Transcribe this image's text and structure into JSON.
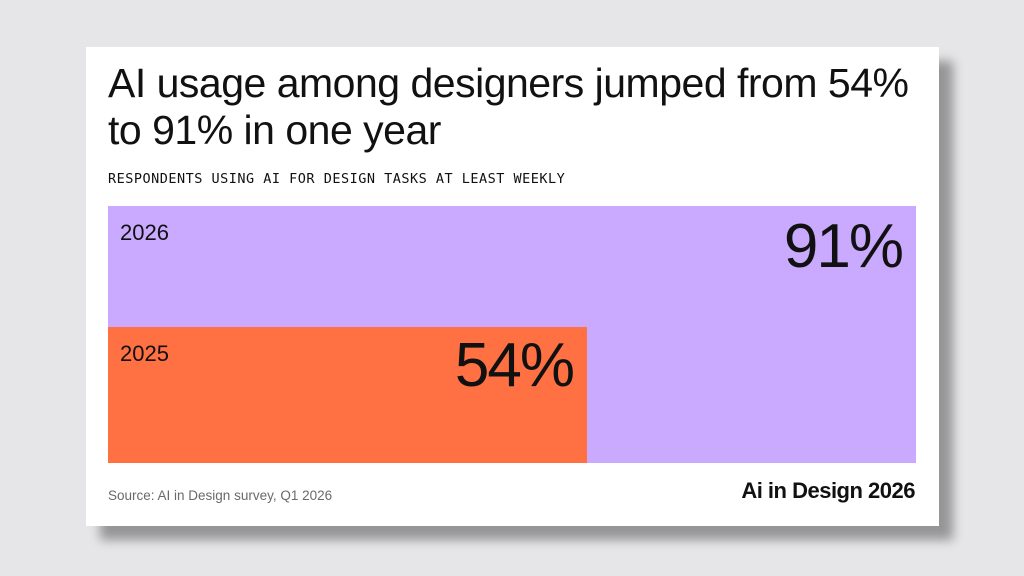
{
  "chart_data": {
    "type": "bar",
    "orientation": "horizontal",
    "title": "AI usage among designers jumped from 54% to 91% in one year",
    "subtitle": "RESPONDENTS USING AI FOR DESIGN TASKS AT LEAST WEEKLY",
    "categories": [
      "2026",
      "2025"
    ],
    "values": [
      91,
      54
    ],
    "value_labels": [
      "91%",
      "54%"
    ],
    "colors": [
      "#c9aaff",
      "#ff7043"
    ],
    "xlim": [
      0,
      91
    ],
    "grid": false,
    "legend": "none"
  },
  "footer": {
    "source": "Source: AI in Design survey, Q1 2026",
    "brand": "Ai in Design 2026"
  }
}
